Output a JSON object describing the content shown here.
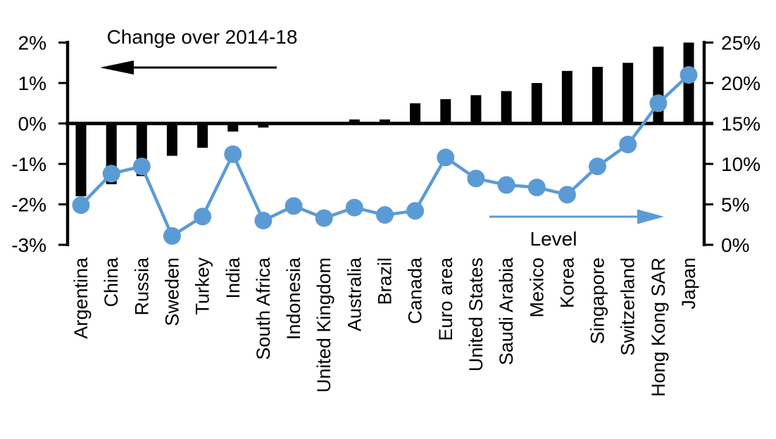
{
  "chart_data": {
    "type": "bar+line-dual-axis",
    "title": "Change over 2014-18",
    "level_label": "Level",
    "grid": false,
    "categories": [
      "Argentina",
      "China",
      "Russia",
      "Sweden",
      "Turkey",
      "India",
      "South Africa",
      "Indonesia",
      "United Kingdom",
      "Australia",
      "Brazil",
      "Canada",
      "Euro area",
      "United States",
      "Saudi Arabia",
      "Mexico",
      "Korea",
      "Singapore",
      "Switzerland",
      "Hong Kong SAR",
      "Japan"
    ],
    "series": [
      {
        "name": "Change over 2014-18",
        "type": "bar",
        "axis": "left",
        "color": "#000000",
        "values": [
          -1.8,
          -1.5,
          -1.3,
          -0.8,
          -0.6,
          -0.2,
          -0.1,
          0.0,
          0.0,
          0.1,
          0.1,
          0.5,
          0.6,
          0.7,
          0.8,
          1.0,
          1.3,
          1.4,
          1.5,
          1.9,
          2.0
        ]
      },
      {
        "name": "Level",
        "type": "line",
        "axis": "right",
        "color": "#5B9BD5",
        "values": [
          4.9,
          8.8,
          9.7,
          1.1,
          3.5,
          11.2,
          3.0,
          4.8,
          3.3,
          4.6,
          3.7,
          4.2,
          10.8,
          8.2,
          7.4,
          7.1,
          6.2,
          9.7,
          12.4,
          17.5,
          21.0
        ]
      }
    ],
    "left_axis": {
      "min": -3,
      "max": 2,
      "ticks": [
        {
          "label": "2%",
          "value": 2
        },
        {
          "label": "1%",
          "value": 1
        },
        {
          "label": "0%",
          "value": 0
        },
        {
          "label": "-1%",
          "value": -1
        },
        {
          "label": "-2%",
          "value": -2
        },
        {
          "label": "-3%",
          "value": -3
        }
      ]
    },
    "right_axis": {
      "min": 0,
      "max": 25,
      "ticks": [
        {
          "label": "25%",
          "value": 25
        },
        {
          "label": "20%",
          "value": 20
        },
        {
          "label": "15%",
          "value": 15
        },
        {
          "label": "10%",
          "value": 10
        },
        {
          "label": "5%",
          "value": 5
        },
        {
          "label": "0%",
          "value": 0
        }
      ]
    },
    "colors": {
      "bar": "#000000",
      "line": "#5B9BD5",
      "axis": "#000000"
    }
  }
}
